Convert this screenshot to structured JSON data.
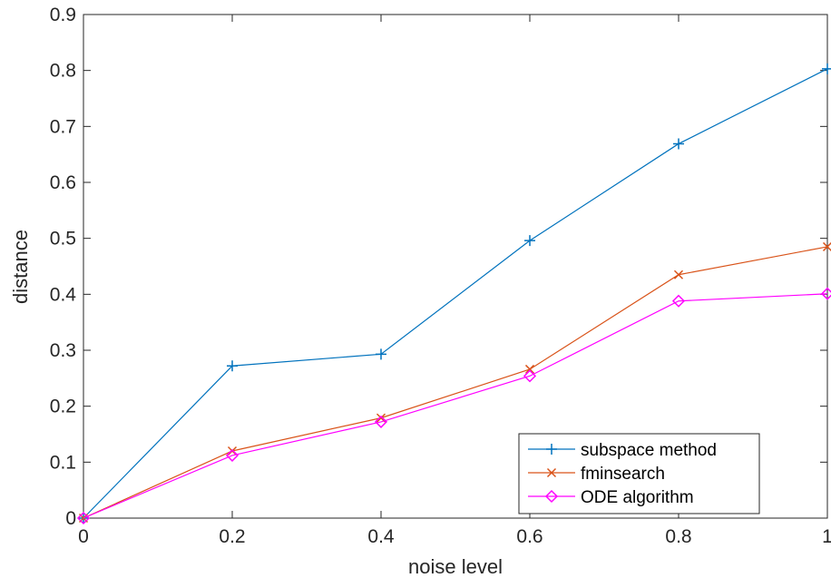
{
  "chart_data": {
    "type": "line",
    "xlabel": "noise level",
    "ylabel": "distance",
    "xlim": [
      0,
      1
    ],
    "ylim": [
      0,
      0.9
    ],
    "x_ticks": [
      "0",
      "0.2",
      "0.4",
      "0.6",
      "0.8",
      "1"
    ],
    "y_ticks": [
      "0",
      "0.1",
      "0.2",
      "0.3",
      "0.4",
      "0.5",
      "0.6",
      "0.7",
      "0.8",
      "0.9"
    ],
    "x": [
      0,
      0.2,
      0.4,
      0.6,
      0.8,
      1.0
    ],
    "series": [
      {
        "name": "subspace method",
        "values": [
          0.0,
          0.272,
          0.293,
          0.496,
          0.669,
          0.803
        ],
        "color": "#0072BD",
        "marker": "plus"
      },
      {
        "name": "fminsearch",
        "values": [
          0.0,
          0.12,
          0.179,
          0.266,
          0.435,
          0.485
        ],
        "color": "#D95319",
        "marker": "x"
      },
      {
        "name": "ODE algorithm",
        "values": [
          0.0,
          0.112,
          0.172,
          0.254,
          0.388,
          0.401
        ],
        "color": "#FF00FF",
        "marker": "diamond"
      }
    ],
    "grid": false,
    "legend_position": "bottom-right"
  }
}
